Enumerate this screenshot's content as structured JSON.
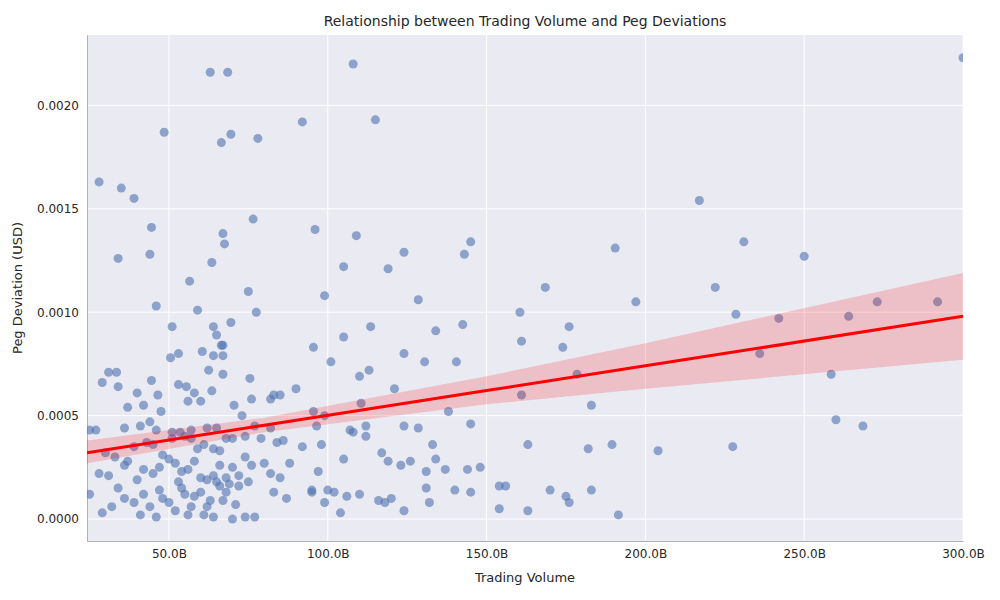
{
  "chart_data": {
    "type": "scatter",
    "title": "Relationship between Trading Volume and Peg Deviations",
    "x_label": "Trading Volume",
    "y_label": "Peg Deviation (USD)",
    "color": "#4c72b0",
    "grid": true,
    "xlim": [
      24.2,
      300
    ],
    "xticks": [
      {
        "value": 50,
        "label": "50.0B"
      },
      {
        "value": 100,
        "label": "100.0B"
      },
      {
        "value": 150,
        "label": "150.0B"
      },
      {
        "value": 200,
        "label": "200.0B"
      },
      {
        "value": 250,
        "label": "250.0B"
      },
      {
        "value": 300,
        "label": "300.0B"
      }
    ],
    "ylim": [
      -0.000106,
      0.00234
    ],
    "yticks": [
      {
        "value": 0,
        "label": "0.0000"
      },
      0.0005,
      {
        "value": 0.001,
        "label": "0.0010"
      },
      0.0015,
      {
        "value": 0.002,
        "label": "0.0020"
      }
    ],
    "x": [
      300,
      108,
      63,
      68.5,
      115,
      92,
      48.5,
      69.5,
      66.5,
      78,
      28,
      35,
      39,
      217,
      44.5,
      76.5,
      96,
      67,
      109,
      145,
      231,
      67.5,
      190.5,
      124,
      143,
      44,
      250,
      34,
      63.5,
      105,
      119,
      56.5,
      222,
      168.5,
      75,
      99,
      128.5,
      197,
      273,
      292,
      46,
      59,
      77.5,
      160.5,
      228.5,
      264,
      242,
      69.5,
      64,
      51,
      113.5,
      134,
      142.5,
      176,
      105,
      65,
      161,
      66.5,
      67,
      95.5,
      174,
      124,
      236,
      60.5,
      53,
      64,
      67,
      50.5,
      101,
      130.5,
      140.5,
      31,
      33.5,
      62.5,
      113,
      110,
      178.5,
      258.5,
      29,
      34,
      44.5,
      55.5,
      53,
      67,
      75.5,
      83,
      85,
      90,
      121,
      46.5,
      40,
      58,
      63.5,
      183,
      161,
      110.5,
      37,
      42,
      47.5,
      56,
      60,
      70.5,
      76,
      82,
      95.5,
      99,
      138,
      260,
      268.5,
      145,
      128.5,
      124,
      96.5,
      25,
      27,
      36,
      41,
      44,
      46,
      51,
      53.5,
      57,
      62,
      65,
      73,
      77,
      82,
      107,
      108,
      112,
      112,
      133,
      134,
      163,
      182,
      189.5,
      204,
      227.5,
      30,
      33,
      36,
      39,
      43,
      45,
      48,
      51,
      55,
      57,
      59,
      61,
      64,
      66,
      68,
      70,
      74,
      79,
      84,
      86,
      92,
      98,
      105,
      117,
      119,
      123,
      131,
      137,
      144,
      148,
      28,
      31,
      34,
      37,
      40,
      42,
      45,
      47,
      50,
      52,
      54,
      56,
      58,
      60,
      62,
      64,
      66,
      68,
      70,
      72,
      74,
      76,
      80,
      82,
      85,
      88,
      95,
      97,
      100,
      102,
      110,
      116,
      120,
      126,
      131,
      140,
      145,
      154,
      156,
      170,
      175,
      176,
      183,
      191.5,
      124,
      29,
      32,
      36,
      39,
      42,
      44,
      46,
      48,
      50,
      52,
      54,
      56,
      58,
      60,
      62,
      64,
      66,
      68,
      70,
      72,
      74,
      77,
      95,
      99,
      104,
      106,
      118,
      132,
      154,
      163,
      25,
      65,
      69,
      53,
      55,
      47,
      41,
      57,
      63,
      61,
      67,
      71,
      75,
      87,
      83
    ],
    "values": [
      0.00223,
      0.0022,
      0.00216,
      0.00216,
      0.00193,
      0.00192,
      0.00187,
      0.00186,
      0.00182,
      0.00184,
      0.00163,
      0.0016,
      0.00155,
      0.00154,
      0.00141,
      0.00145,
      0.0014,
      0.00138,
      0.00137,
      0.00134,
      0.00134,
      0.00133,
      0.00131,
      0.00129,
      0.00128,
      0.00128,
      0.00127,
      0.00126,
      0.00124,
      0.00122,
      0.00121,
      0.00115,
      0.00112,
      0.00112,
      0.0011,
      0.00108,
      0.00106,
      0.00105,
      0.00105,
      0.00105,
      0.00103,
      0.00101,
      0.001,
      0.001,
      0.00099,
      0.00098,
      0.00097,
      0.00095,
      0.00093,
      0.00093,
      0.00093,
      0.00091,
      0.00094,
      0.00093,
      0.00088,
      0.00089,
      0.00086,
      0.00084,
      0.00084,
      0.00083,
      0.00083,
      0.0008,
      0.0008,
      0.00081,
      0.0008,
      0.00079,
      0.00079,
      0.00078,
      0.00076,
      0.00076,
      0.00076,
      0.00071,
      0.00071,
      0.00072,
      0.00072,
      0.00069,
      0.0007,
      0.0007,
      0.00066,
      0.00064,
      0.00067,
      0.00064,
      0.00065,
      0.0007,
      0.00068,
      0.0006,
      0.0006,
      0.00063,
      0.00063,
      0.0006,
      0.00061,
      0.00061,
      0.00062,
      0.00055,
      0.0006,
      0.00056,
      0.00054,
      0.00055,
      0.00052,
      0.00057,
      0.00057,
      0.00055,
      0.00058,
      0.00058,
      0.00052,
      0.0005,
      0.00052,
      0.00048,
      0.00045,
      0.00046,
      0.00044,
      0.00045,
      0.00045,
      0.00043,
      0.00043,
      0.00044,
      0.00045,
      0.00047,
      0.00043,
      0.00042,
      0.00042,
      0.00043,
      0.00044,
      0.00044,
      0.0005,
      0.00045,
      0.00044,
      0.00043,
      0.00042,
      0.00045,
      0.0004,
      0.00036,
      0.00029,
      0.00036,
      0.00034,
      0.00036,
      0.00033,
      0.00035,
      0.00032,
      0.0003,
      0.00026,
      0.00035,
      0.00037,
      0.00036,
      0.00031,
      0.00039,
      0.0004,
      0.00039,
      0.00034,
      0.00036,
      0.00034,
      0.00033,
      0.00039,
      0.00039,
      0.0004,
      0.00039,
      0.00037,
      0.00038,
      0.00035,
      0.00036,
      0.00029,
      0.00032,
      0.00028,
      0.00026,
      0.00023,
      0.00024,
      0.00024,
      0.00025,
      0.00022,
      0.00021,
      0.00015,
      0.00028,
      0.00019,
      0.00024,
      0.00022,
      0.00025,
      0.00029,
      0.00027,
      0.00023,
      0.00024,
      0.00028,
      0.0002,
      0.00019,
      0.00021,
      0.00026,
      0.0002,
      0.00025,
      0.00021,
      0.0003,
      0.00026,
      0.00027,
      0.00022,
      0.0002,
      0.00027,
      0.00014,
      0.00023,
      0.00014,
      0.00013,
      0.00012,
      9e-05,
      0.0001,
      0.00028,
      0.00015,
      0.00014,
      0.00013,
      0.00016,
      0.00016,
      0.00014,
      0.00011,
      8e-05,
      0.00014,
      2e-05,
      4e-05,
      3e-05,
      6e-05,
      0.0001,
      8e-05,
      0.00012,
      6e-05,
      1e-05,
      0.0001,
      8e-05,
      4e-05,
      0.00015,
      2e-05,
      0.00011,
      0.00013,
      6e-05,
      1e-05,
      0.00016,
      0.00013,
      0,
      0.00016,
      1e-05,
      1e-05,
      0.00013,
      8e-05,
      3e-05,
      0.00011,
      8e-05,
      8e-05,
      5e-05,
      4e-05,
      0.00012,
      0.00018,
      0.00017,
      0.00018,
      0.00012,
      0.00014,
      2e-05,
      6e-05,
      9e-05,
      2e-05,
      9e-05,
      7e-05,
      0.00018,
      0.0001,
      0.00013
    ],
    "regression": {
      "color": "#ff0000",
      "x": [
        24.2,
        80,
        150,
        200,
        300
      ],
      "values": [
        0.00032,
        0.000454,
        0.000621,
        0.000741,
        0.00098
      ],
      "lower": [
        0.00027,
        0.00042,
        0.000555,
        0.00063,
        0.00077
      ],
      "upper": [
        0.00038,
        0.00049,
        0.00069,
        0.00085,
        0.00119
      ]
    }
  }
}
